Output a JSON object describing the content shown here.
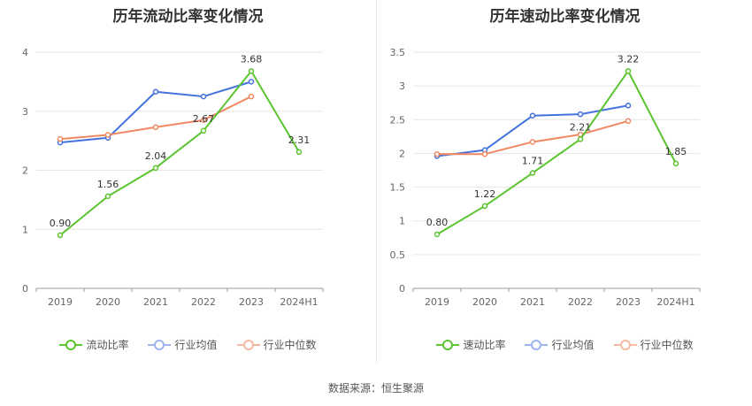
{
  "footer": "数据来源：恒生聚源",
  "chart_data": [
    {
      "type": "line",
      "title": "历年流动比率变化情况",
      "categories": [
        "2019",
        "2020",
        "2021",
        "2022",
        "2023",
        "2024H1"
      ],
      "ylim": [
        0,
        4
      ],
      "yticks": [
        "0",
        "1",
        "2",
        "3",
        "4"
      ],
      "grid": true,
      "legend_position": "bottom",
      "series": [
        {
          "name": "流动比率",
          "color": "#5cc430",
          "values": [
            0.9,
            1.56,
            2.04,
            2.67,
            3.68,
            2.31
          ],
          "labels": [
            "0.90",
            "1.56",
            "2.04",
            "2.67",
            "3.68",
            "2.31"
          ]
        },
        {
          "name": "行业均值",
          "color": "#4472dd",
          "values": [
            2.47,
            2.55,
            3.33,
            3.25,
            3.5,
            null
          ]
        },
        {
          "name": "行业中位数",
          "color": "#f08862",
          "values": [
            2.53,
            2.6,
            2.73,
            2.85,
            3.25,
            null
          ]
        }
      ]
    },
    {
      "type": "line",
      "title": "历年速动比率变化情况",
      "categories": [
        "2019",
        "2020",
        "2021",
        "2022",
        "2023",
        "2024H1"
      ],
      "ylim": [
        0,
        3.5
      ],
      "yticks": [
        "0",
        "0.5",
        "1",
        "1.5",
        "2",
        "2.5",
        "3",
        "3.5"
      ],
      "grid": true,
      "legend_position": "bottom",
      "series": [
        {
          "name": "速动比率",
          "color": "#5cc430",
          "values": [
            0.8,
            1.22,
            1.71,
            2.21,
            3.22,
            1.85
          ],
          "labels": [
            "0.80",
            "1.22",
            "1.71",
            "2.21",
            "3.22",
            "1.85"
          ]
        },
        {
          "name": "行业均值",
          "color": "#4472dd",
          "values": [
            1.96,
            2.05,
            2.56,
            2.58,
            2.71,
            null
          ]
        },
        {
          "name": "行业中位数",
          "color": "#f08862",
          "values": [
            1.99,
            1.99,
            2.17,
            2.28,
            2.48,
            null
          ]
        }
      ]
    }
  ]
}
